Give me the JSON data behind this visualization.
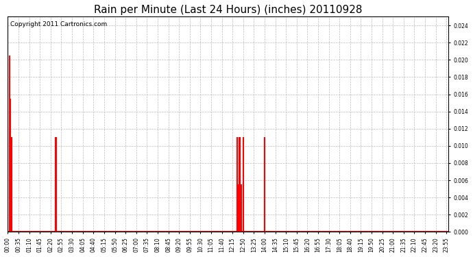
{
  "title": "Rain per Minute (Last 24 Hours) (inches) 20110928",
  "copyright_text": "Copyright 2011 Cartronics.com",
  "background_color": "#ffffff",
  "plot_bg_color": "#ffffff",
  "grid_color": "#bbbbbb",
  "line_color": "#ff0000",
  "baseline_color": "#ff0000",
  "ylim": [
    0.0,
    0.025
  ],
  "yticks": [
    0.0,
    0.002,
    0.004,
    0.006,
    0.008,
    0.01,
    0.012,
    0.014,
    0.016,
    0.018,
    0.02,
    0.022,
    0.024
  ],
  "total_minutes": 1440,
  "spikes": [
    {
      "minute": 5,
      "value": 0.0205
    },
    {
      "minute": 8,
      "value": 0.0155
    },
    {
      "minute": 11,
      "value": 0.011
    },
    {
      "minute": 13,
      "value": 0.011
    },
    {
      "minute": 155,
      "value": 0.011
    },
    {
      "minute": 157,
      "value": 0.0055
    },
    {
      "minute": 159,
      "value": 0.011
    },
    {
      "minute": 750,
      "value": 0.011
    },
    {
      "minute": 753,
      "value": 0.0055
    },
    {
      "minute": 756,
      "value": 0.011
    },
    {
      "minute": 758,
      "value": 0.011
    },
    {
      "minute": 760,
      "value": 0.011
    },
    {
      "minute": 763,
      "value": 0.0055
    },
    {
      "minute": 770,
      "value": 0.011
    },
    {
      "minute": 840,
      "value": 0.011
    }
  ],
  "xtick_interval_minutes": 35,
  "title_fontsize": 11,
  "copyright_fontsize": 6.5,
  "tick_fontsize": 5.5,
  "ylabel_fontsize": 7
}
